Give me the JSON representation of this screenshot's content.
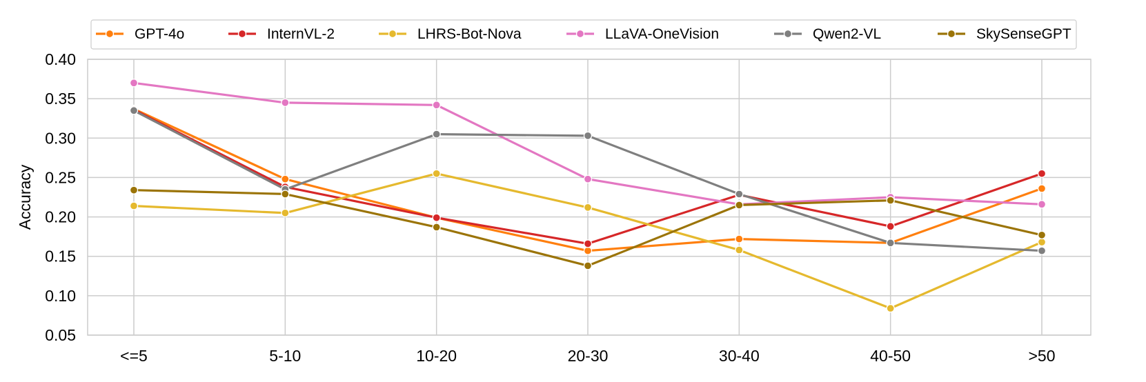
{
  "chart_data": {
    "type": "line",
    "title": "",
    "xlabel": "",
    "ylabel": "Accuracy",
    "categories": [
      "<=5",
      "5-10",
      "10-20",
      "20-30",
      "30-40",
      "40-50",
      ">50"
    ],
    "ylim": [
      0.05,
      0.4
    ],
    "yticks": [
      "0.05",
      "0.10",
      "0.15",
      "0.20",
      "0.25",
      "0.30",
      "0.35",
      "0.40"
    ],
    "grid": true,
    "legend_position": "top",
    "series": [
      {
        "name": "GPT-4o",
        "color": "#ff7f0e",
        "values": [
          0.337,
          0.248,
          0.199,
          0.157,
          0.172,
          0.167,
          0.236
        ]
      },
      {
        "name": "InternVL-2",
        "color": "#d62728",
        "values": [
          0.336,
          0.238,
          0.199,
          0.166,
          0.228,
          0.188,
          0.255
        ]
      },
      {
        "name": "LHRS-Bot-Nova",
        "color": "#e5b92e",
        "values": [
          0.214,
          0.205,
          0.255,
          0.212,
          0.158,
          0.084,
          0.168
        ]
      },
      {
        "name": "LLaVA-OneVision",
        "color": "#e377c2",
        "values": [
          0.37,
          0.345,
          0.342,
          0.248,
          0.216,
          0.225,
          0.216
        ]
      },
      {
        "name": "Qwen2-VL",
        "color": "#7f7f7f",
        "values": [
          0.335,
          0.235,
          0.305,
          0.303,
          0.229,
          0.167,
          0.157
        ]
      },
      {
        "name": "SkySenseGPT",
        "color": "#9b7408",
        "values": [
          0.234,
          0.229,
          0.187,
          0.138,
          0.215,
          0.221,
          0.177
        ]
      }
    ]
  }
}
